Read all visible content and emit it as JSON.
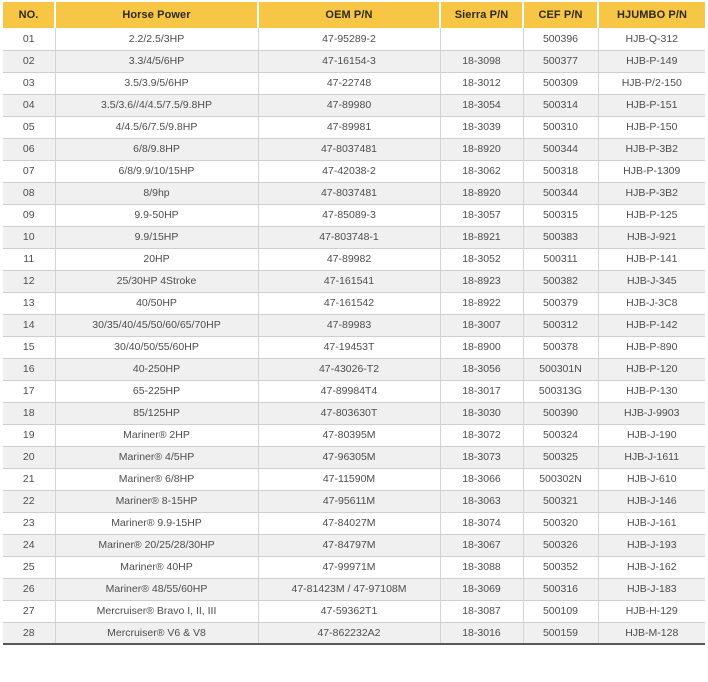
{
  "theme": {
    "header_bg": "#f7c644",
    "header_text": "#2d2a20",
    "row_alt_bg": "#f0f0f0",
    "grid_line": "#cecece",
    "bottom_rule": "#58595b",
    "body_text": "#4d4d4d"
  },
  "table": {
    "columns": [
      {
        "id": "no",
        "label": "NO."
      },
      {
        "id": "horse-power",
        "label": "Horse Power"
      },
      {
        "id": "oem-pn",
        "label": "OEM P/N"
      },
      {
        "id": "sierra-pn",
        "label": "Sierra P/N"
      },
      {
        "id": "cef-pn",
        "label": "CEF P/N"
      },
      {
        "id": "hjumbo-pn",
        "label": "HJUMBO P/N"
      }
    ],
    "rows": [
      [
        "01",
        "2.2/2.5/3HP",
        "47-95289-2",
        "",
        "500396",
        "HJB-Q-312"
      ],
      [
        "02",
        "3.3/4/5/6HP",
        "47-16154-3",
        "18-3098",
        "500377",
        "HJB-P-149"
      ],
      [
        "03",
        "3.5/3.9/5/6HP",
        "47-22748",
        "18-3012",
        "500309",
        "HJB-P/2-150"
      ],
      [
        "04",
        "3.5/3.6//4/4.5/7.5/9.8HP",
        "47-89980",
        "18-3054",
        "500314",
        "HJB-P-151"
      ],
      [
        "05",
        "4/4.5/6/7.5/9.8HP",
        "47-89981",
        "18-3039",
        "500310",
        "HJB-P-150"
      ],
      [
        "06",
        "6/8/9.8HP",
        "47-8037481",
        "18-8920",
        "500344",
        "HJB-P-3B2"
      ],
      [
        "07",
        "6/8/9.9/10/15HP",
        "47-42038-2",
        "18-3062",
        "500318",
        "HJB-P-1309"
      ],
      [
        "08",
        "8/9hp",
        "47-8037481",
        "18-8920",
        "500344",
        "HJB-P-3B2"
      ],
      [
        "09",
        "9.9-50HP",
        "47-85089-3",
        "18-3057",
        "500315",
        "HJB-P-125"
      ],
      [
        "10",
        "9.9/15HP",
        "47-803748-1",
        "18-8921",
        "500383",
        "HJB-J-921"
      ],
      [
        "11",
        "20HP",
        "47-89982",
        "18-3052",
        "500311",
        "HJB-P-141"
      ],
      [
        "12",
        "25/30HP 4Stroke",
        "47-161541",
        "18-8923",
        "500382",
        "HJB-J-345"
      ],
      [
        "13",
        "40/50HP",
        "47-161542",
        "18-8922",
        "500379",
        "HJB-J-3C8"
      ],
      [
        "14",
        "30/35/40/45/50/60/65/70HP",
        "47-89983",
        "18-3007",
        "500312",
        "HJB-P-142"
      ],
      [
        "15",
        "30/40/50/55/60HP",
        "47-19453T",
        "18-8900",
        "500378",
        "HJB-P-890"
      ],
      [
        "16",
        "40-250HP",
        "47-43026-T2",
        "18-3056",
        "500301N",
        "HJB-P-120"
      ],
      [
        "17",
        "65-225HP",
        "47-89984T4",
        "18-3017",
        "500313G",
        "HJB-P-130"
      ],
      [
        "18",
        "85/125HP",
        "47-803630T",
        "18-3030",
        "500390",
        "HJB-J-9903"
      ],
      [
        "19",
        "Mariner® 2HP",
        "47-80395M",
        "18-3072",
        "500324",
        "HJB-J-190"
      ],
      [
        "20",
        "Mariner® 4/5HP",
        "47-96305M",
        "18-3073",
        "500325",
        "HJB-J-1611"
      ],
      [
        "21",
        "Mariner® 6/8HP",
        "47-11590M",
        "18-3066",
        "500302N",
        "HJB-J-610"
      ],
      [
        "22",
        "Mariner® 8-15HP",
        "47-95611M",
        "18-3063",
        "500321",
        "HJB-J-146"
      ],
      [
        "23",
        "Mariner® 9.9-15HP",
        "47-84027M",
        "18-3074",
        "500320",
        "HJB-J-161"
      ],
      [
        "24",
        "Mariner® 20/25/28/30HP",
        "47-84797M",
        "18-3067",
        "500326",
        "HJB-J-193"
      ],
      [
        "25",
        "Mariner® 40HP",
        "47-99971M",
        "18-3088",
        "500352",
        "HJB-J-162"
      ],
      [
        "26",
        "Mariner® 48/55/60HP",
        "47-81423M / 47-97108M",
        "18-3069",
        "500316",
        "HJB-J-183"
      ],
      [
        "27",
        "Mercruiser® Bravo I, II, III",
        "47-59362T1",
        "18-3087",
        "500109",
        "HJB-H-129"
      ],
      [
        "28",
        "Mercruiser® V6 & V8",
        "47-862232A2",
        "18-3016",
        "500159",
        "HJB-M-128"
      ]
    ]
  }
}
